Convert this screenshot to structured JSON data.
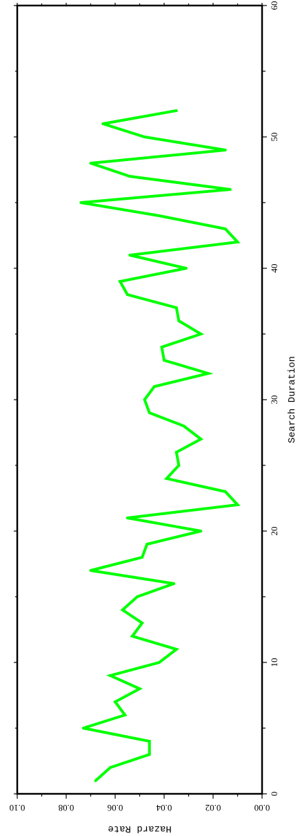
{
  "chart_data": {
    "type": "line",
    "title": "",
    "xlabel": "Search Duration",
    "ylabel": "Hazard Rate",
    "xlim": [
      0,
      60
    ],
    "ylim": [
      0.0,
      0.1
    ],
    "x_ticks": [
      0,
      10,
      20,
      30,
      40,
      50,
      60
    ],
    "x_tick_labels": [
      "0",
      "10",
      "20",
      "30",
      "40",
      "50",
      "60"
    ],
    "y_ticks": [
      0.0,
      0.02,
      0.04,
      0.06,
      0.08,
      0.1
    ],
    "y_tick_labels": [
      "0.00",
      "0.02",
      "0.04",
      "0.06",
      "0.08",
      "0.10"
    ],
    "grid": false,
    "legend": "none",
    "orientation": "rotated-90",
    "series": [
      {
        "color": "#00ff00",
        "x": [
          1,
          2,
          3,
          4,
          5,
          6,
          7,
          8,
          9,
          10,
          11,
          12,
          13,
          14,
          15,
          16,
          17,
          18,
          19,
          20,
          21,
          22,
          23,
          24,
          25,
          26,
          27,
          28,
          29,
          30,
          31,
          32,
          33,
          34,
          35,
          36,
          37,
          38,
          39,
          40,
          41,
          42,
          43,
          44,
          45,
          46,
          47,
          48,
          49,
          50,
          51,
          52
        ],
        "y": [
          0.068,
          0.062,
          0.046,
          0.046,
          0.073,
          0.056,
          0.06,
          0.05,
          0.062,
          0.042,
          0.035,
          0.053,
          0.049,
          0.057,
          0.051,
          0.036,
          0.07,
          0.049,
          0.047,
          0.025,
          0.055,
          0.01,
          0.015,
          0.039,
          0.034,
          0.035,
          0.025,
          0.032,
          0.046,
          0.048,
          0.044,
          0.022,
          0.04,
          0.041,
          0.025,
          0.034,
          0.035,
          0.055,
          0.058,
          0.031,
          0.054,
          0.01,
          0.015,
          0.042,
          0.074,
          0.013,
          0.054,
          0.07,
          0.015,
          0.048,
          0.065,
          0.035
        ]
      }
    ]
  }
}
